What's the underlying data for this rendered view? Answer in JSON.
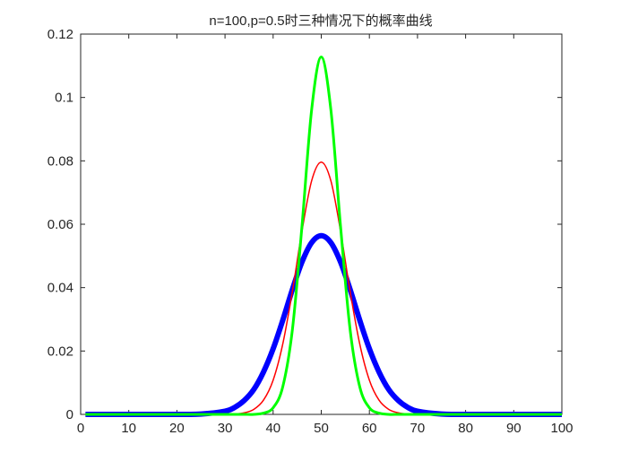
{
  "chart_data": {
    "type": "line",
    "title": "n=100,p=0.5时三种情况下的概率曲线",
    "xlabel": "",
    "ylabel": "",
    "xlim": [
      0,
      100
    ],
    "ylim": [
      0,
      0.12
    ],
    "grid": false,
    "x_ticks": [
      "0",
      "10",
      "20",
      "30",
      "40",
      "50",
      "60",
      "70",
      "80",
      "90",
      "100"
    ],
    "y_ticks": [
      "0",
      "0.02",
      "0.04",
      "0.06",
      "0.08",
      "0.1",
      "0.12"
    ],
    "x": [
      1,
      20,
      25,
      30,
      32,
      34,
      36,
      38,
      40,
      42,
      44,
      46,
      48,
      50,
      52,
      54,
      56,
      58,
      60,
      62,
      64,
      66,
      68,
      70,
      75,
      80,
      100
    ],
    "series": [
      {
        "color": "#0000ff",
        "values": [
          0,
          0,
          0.0001,
          0.001,
          0.0022,
          0.0044,
          0.0079,
          0.0134,
          0.0207,
          0.0297,
          0.0394,
          0.0481,
          0.0542,
          0.0564,
          0.0542,
          0.0481,
          0.0394,
          0.0297,
          0.0207,
          0.0134,
          0.0079,
          0.0044,
          0.0022,
          0.001,
          0.0001,
          0,
          0
        ]
      },
      {
        "color": "#ff0000",
        "values": [
          0,
          0,
          0,
          0,
          0.0001,
          0.0005,
          0.0016,
          0.0045,
          0.0108,
          0.0222,
          0.0388,
          0.0579,
          0.0737,
          0.0796,
          0.0737,
          0.0579,
          0.0388,
          0.0222,
          0.0108,
          0.0045,
          0.0016,
          0.0005,
          0.0001,
          0,
          0,
          0,
          0
        ]
      },
      {
        "color": "#00ff00",
        "values": [
          0,
          0,
          0,
          0,
          0,
          0,
          0,
          0.0004,
          0.0021,
          0.0087,
          0.0267,
          0.0595,
          0.0961,
          0.1128,
          0.0961,
          0.0595,
          0.0267,
          0.0087,
          0.0021,
          0.0004,
          0,
          0,
          0,
          0,
          0,
          0,
          0
        ]
      }
    ]
  }
}
